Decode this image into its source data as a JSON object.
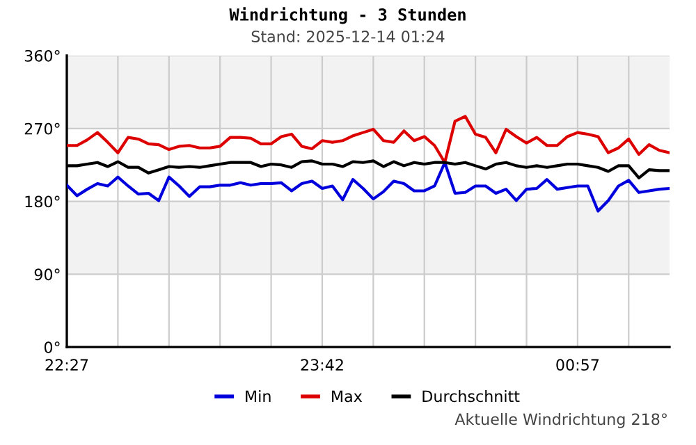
{
  "chart_data": {
    "type": "line",
    "title": "Windrichtung - 3 Stunden",
    "subtitle": "Stand: 2025-12-14 01:24",
    "annotations": [
      "Aktuelle Windrichtung 218°"
    ],
    "x": [
      "2025-12-13T22:27",
      "2025-12-13T22:30",
      "2025-12-13T22:33",
      "2025-12-13T22:36",
      "2025-12-13T22:39",
      "2025-12-13T22:42",
      "2025-12-13T22:45",
      "2025-12-13T22:48",
      "2025-12-13T22:51",
      "2025-12-13T22:54",
      "2025-12-13T22:57",
      "2025-12-13T23:00",
      "2025-12-13T23:03",
      "2025-12-13T23:06",
      "2025-12-13T23:09",
      "2025-12-13T23:12",
      "2025-12-13T23:15",
      "2025-12-13T23:18",
      "2025-12-13T23:21",
      "2025-12-13T23:24",
      "2025-12-13T23:27",
      "2025-12-13T23:30",
      "2025-12-13T23:33",
      "2025-12-13T23:36",
      "2025-12-13T23:39",
      "2025-12-13T23:42",
      "2025-12-13T23:45",
      "2025-12-13T23:48",
      "2025-12-13T23:51",
      "2025-12-13T23:54",
      "2025-12-13T23:57",
      "2025-12-14T00:00",
      "2025-12-14T00:03",
      "2025-12-14T00:06",
      "2025-12-14T00:09",
      "2025-12-14T00:12",
      "2025-12-14T00:15",
      "2025-12-14T00:18",
      "2025-12-14T00:21",
      "2025-12-14T00:24",
      "2025-12-14T00:27",
      "2025-12-14T00:30",
      "2025-12-14T00:33",
      "2025-12-14T00:36",
      "2025-12-14T00:39",
      "2025-12-14T00:42",
      "2025-12-14T00:45",
      "2025-12-14T00:48",
      "2025-12-14T00:51",
      "2025-12-14T00:54",
      "2025-12-14T00:57",
      "2025-12-14T01:00",
      "2025-12-14T01:03",
      "2025-12-14T01:06",
      "2025-12-14T01:09",
      "2025-12-14T01:12",
      "2025-12-14T01:15",
      "2025-12-14T01:18",
      "2025-12-14T01:21",
      "2025-12-14T01:24"
    ],
    "series": [
      {
        "name": "Min",
        "color": "#0000dd",
        "values": [
          200,
          187,
          195,
          202,
          199,
          210,
          199,
          189,
          190,
          181,
          210,
          199,
          186,
          198,
          198,
          200,
          200,
          203,
          200,
          202,
          202,
          203,
          193,
          202,
          205,
          196,
          199,
          182,
          207,
          196,
          183,
          192,
          205,
          202,
          193,
          193,
          199,
          228,
          190,
          191,
          199,
          199,
          190,
          195,
          181,
          195,
          196,
          207,
          195,
          197,
          199,
          199,
          168,
          181,
          199,
          206,
          191,
          193,
          195,
          196
        ]
      },
      {
        "name": "Max",
        "color": "#dd0000",
        "values": [
          249,
          249,
          256,
          265,
          253,
          240,
          259,
          257,
          251,
          250,
          244,
          248,
          249,
          246,
          246,
          248,
          259,
          259,
          258,
          251,
          251,
          260,
          263,
          248,
          245,
          255,
          253,
          255,
          261,
          265,
          269,
          255,
          253,
          267,
          255,
          260,
          249,
          228,
          279,
          285,
          263,
          259,
          240,
          269,
          260,
          252,
          259,
          249,
          249,
          260,
          265,
          263,
          260,
          240,
          246,
          257,
          238,
          250,
          243,
          240
        ]
      },
      {
        "name": "Durchschnitt",
        "color": "#000000",
        "values": [
          224,
          224,
          226,
          228,
          223,
          229,
          222,
          222,
          215,
          219,
          223,
          222,
          223,
          222,
          224,
          226,
          228,
          228,
          228,
          223,
          226,
          225,
          222,
          229,
          230,
          226,
          226,
          223,
          229,
          228,
          230,
          223,
          229,
          224,
          228,
          226,
          228,
          228,
          226,
          228,
          224,
          220,
          226,
          228,
          224,
          222,
          224,
          222,
          224,
          226,
          226,
          224,
          222,
          217,
          224,
          224,
          209,
          219,
          218,
          218
        ]
      }
    ],
    "xlim": [
      "2025-12-13T22:27",
      "2025-12-14T01:24"
    ],
    "xticks": [
      {
        "value": "2025-12-13T22:27",
        "label": "22:27"
      },
      {
        "value": "2025-12-13T22:42",
        "label": null
      },
      {
        "value": "2025-12-13T22:57",
        "label": null
      },
      {
        "value": "2025-12-13T23:12",
        "label": null
      },
      {
        "value": "2025-12-13T23:27",
        "label": null
      },
      {
        "value": "2025-12-13T23:42",
        "label": "23:42"
      },
      {
        "value": "2025-12-13T23:57",
        "label": null
      },
      {
        "value": "2025-12-14T00:12",
        "label": null
      },
      {
        "value": "2025-12-14T00:27",
        "label": null
      },
      {
        "value": "2025-12-14T00:42",
        "label": null
      },
      {
        "value": "2025-12-14T00:57",
        "label": "00:57"
      },
      {
        "value": "2025-12-14T01:12",
        "label": null
      }
    ],
    "ylim": [
      0,
      360
    ],
    "yticks": [
      {
        "value": 0,
        "label": "0°"
      },
      {
        "value": 90,
        "label": "90°"
      },
      {
        "value": 180,
        "label": "180°"
      },
      {
        "value": 270,
        "label": "270°"
      },
      {
        "value": 360,
        "label": "360°"
      }
    ],
    "bands": [
      {
        "axis": "y",
        "from": 90,
        "to": 180,
        "color": "#f2f2f2"
      },
      {
        "axis": "y",
        "from": 270,
        "to": 360,
        "color": "#f2f2f2"
      }
    ],
    "grid": true,
    "legend": "bottom",
    "marker": "none",
    "line_style": "solid"
  }
}
